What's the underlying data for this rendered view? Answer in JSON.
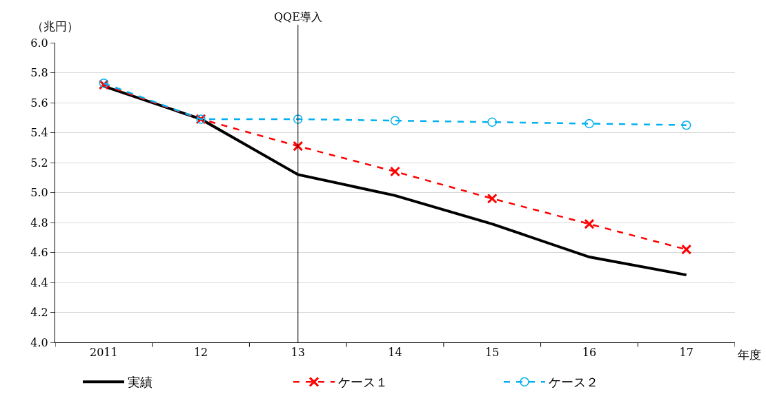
{
  "chart_data": {
    "type": "line",
    "xlabel": "年度",
    "ylabel": "（兆円）",
    "categories": [
      "2011",
      "12",
      "13",
      "14",
      "15",
      "16",
      "17"
    ],
    "series": [
      {
        "name": "実績",
        "color": "#000000",
        "line_style": "solid",
        "marker": "none",
        "values": [
          5.71,
          5.49,
          5.12,
          4.98,
          4.79,
          4.57,
          4.45
        ]
      },
      {
        "name": "ケース１",
        "color": "#ff0000",
        "line_style": "dashed",
        "marker": "cross",
        "values": [
          5.72,
          5.49,
          5.31,
          5.14,
          4.96,
          4.79,
          4.62
        ]
      },
      {
        "name": "ケース２",
        "color": "#00b0f0",
        "line_style": "dashed",
        "marker": "circle",
        "values": [
          5.73,
          5.49,
          5.49,
          5.48,
          5.47,
          5.46,
          5.45
        ]
      }
    ],
    "ylim": [
      4.0,
      6.0
    ],
    "yticks": [
      {
        "value": 4.0,
        "label": "4.0"
      },
      {
        "value": 4.2,
        "label": "4.2"
      },
      {
        "value": 4.4,
        "label": "4.4"
      },
      {
        "value": 4.6,
        "label": "4.6"
      },
      {
        "value": 4.8,
        "label": "4.8"
      },
      {
        "value": 5.0,
        "label": "5.0"
      },
      {
        "value": 5.2,
        "label": "5.2"
      },
      {
        "value": 5.4,
        "label": "5.4"
      },
      {
        "value": 5.6,
        "label": "5.6"
      },
      {
        "value": 5.8,
        "label": "5.8"
      },
      {
        "value": 6.0,
        "label": "6.0"
      }
    ],
    "ref_lines": [
      {
        "axis": "x",
        "value": "13",
        "label": "QQE導入",
        "color": "#000000"
      }
    ],
    "grid": "y",
    "legend": "bottom"
  }
}
